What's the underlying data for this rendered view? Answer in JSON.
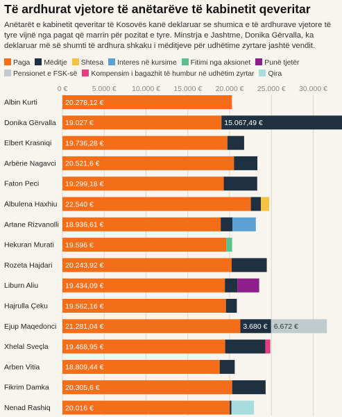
{
  "chart_data": {
    "type": "bar",
    "orientation": "horizontal",
    "stacked": true,
    "title": "Të ardhurat vjetore të anëtarëve të kabinetit qeveritar",
    "subtitle": "Anëtarët e kabinetit qeveritar të Kosovës kanë deklaruar se shumica e të ardhurave vjetore të tyre vijnë nga pagat që marrin për pozitat e tyre. Minstrja e Jashtme, Donika Gërvalla, ka deklaruar më së shumti të ardhura shkaku i mëditjeve për udhëtime zyrtare jashtë vendit.",
    "xlim": [
      0,
      34000
    ],
    "x_ticks": [
      0,
      5000,
      10000,
      15000,
      20000,
      25000,
      30000
    ],
    "x_tick_labels": [
      "0 €",
      "5.000 €",
      "10.000 €",
      "15.000 €",
      "20.000 €",
      "25.000 €",
      "30.000 €"
    ],
    "grid": true,
    "legend_position": "top",
    "categories": [
      "Albin Kurti",
      "Donika Gërvalla",
      "Elbert Krasniqi",
      "Arbërie Nagavci",
      "Faton Peci",
      "Albulena Haxhiu",
      "Artane Rizvanolli",
      "Hekuran Murati",
      "Rozeta Hajdari",
      "Liburn Aliu",
      "Hajrulla Çeku",
      "Ejup Maqedonci",
      "Xhelal Sveçla",
      "Arben Vitia",
      "Fikrim Damka",
      "Nenad Rashiq"
    ],
    "series": [
      {
        "name": "Paga",
        "color": "#f46d19",
        "values": [
          20278.12,
          19027,
          19736.28,
          20521.6,
          19299.18,
          22540,
          18936.61,
          19596,
          20243.92,
          19434.09,
          19562.16,
          21281.04,
          19468.95,
          18809.44,
          20305.6,
          20016
        ]
      },
      {
        "name": "Mëditje",
        "color": "#1f3040",
        "values": [
          0,
          15067.49,
          2000,
          2800,
          4000,
          1200,
          1400,
          0,
          4200,
          1500,
          1300,
          3680,
          4800,
          1800,
          4000,
          200
        ]
      },
      {
        "name": "Shtesa",
        "color": "#f6c243",
        "values": [
          0,
          0,
          0,
          0,
          0,
          1000,
          0,
          0,
          0,
          0,
          0,
          0,
          0,
          0,
          0,
          0
        ]
      },
      {
        "name": "Interes në kursime",
        "color": "#5aa2d6",
        "values": [
          0,
          0,
          0,
          0,
          0,
          0,
          2800,
          0,
          0,
          0,
          0,
          0,
          0,
          0,
          0,
          0
        ]
      },
      {
        "name": "Fitimi nga aksionet",
        "color": "#5ac18e",
        "values": [
          0,
          0,
          0,
          0,
          0,
          0,
          0,
          700,
          0,
          0,
          0,
          0,
          0,
          0,
          0,
          0
        ]
      },
      {
        "name": "Punë tjetër",
        "color": "#8c1f8c",
        "values": [
          0,
          0,
          0,
          0,
          0,
          0,
          0,
          0,
          0,
          2600,
          0,
          0,
          0,
          0,
          0,
          0
        ]
      },
      {
        "name": "Pensionet e FSK-së",
        "color": "#bfcbcc",
        "values": [
          0,
          0,
          0,
          0,
          0,
          0,
          0,
          0,
          0,
          0,
          0,
          6672,
          0,
          0,
          0,
          0
        ]
      },
      {
        "name": "Kompensim i bagazhit të humbur në udhëtim zyrtar",
        "color": "#e43d80",
        "values": [
          0,
          0,
          0,
          0,
          0,
          0,
          0,
          0,
          0,
          0,
          0,
          0,
          600,
          0,
          0,
          0
        ]
      },
      {
        "name": "Qira",
        "color": "#a8dde0",
        "values": [
          0,
          0,
          0,
          0,
          0,
          0,
          0,
          0,
          0,
          0,
          0,
          0,
          0,
          0,
          0,
          2700
        ]
      }
    ],
    "data_labels": [
      {
        "row": 0,
        "series": 0,
        "text": "20.278,12 €"
      },
      {
        "row": 1,
        "series": 0,
        "text": "19.027 €"
      },
      {
        "row": 1,
        "series": 1,
        "text": "15.067,49 €"
      },
      {
        "row": 2,
        "series": 0,
        "text": "19.736,28 €"
      },
      {
        "row": 3,
        "series": 0,
        "text": "20.521,6 €"
      },
      {
        "row": 4,
        "series": 0,
        "text": "19.299,18 €"
      },
      {
        "row": 5,
        "series": 0,
        "text": "22.540 €"
      },
      {
        "row": 6,
        "series": 0,
        "text": "18.936,61 €"
      },
      {
        "row": 7,
        "series": 0,
        "text": "19.596 €"
      },
      {
        "row": 8,
        "series": 0,
        "text": "20.243,92 €"
      },
      {
        "row": 9,
        "series": 0,
        "text": "19.434,09 €"
      },
      {
        "row": 10,
        "series": 0,
        "text": "19.562,16 €"
      },
      {
        "row": 11,
        "series": 0,
        "text": "21.281,04 €"
      },
      {
        "row": 11,
        "series": 1,
        "text": "3.680 €"
      },
      {
        "row": 11,
        "series": 6,
        "text": "6.672 €"
      },
      {
        "row": 12,
        "series": 0,
        "text": "19.468,95 €"
      },
      {
        "row": 13,
        "series": 0,
        "text": "18.809,44 €"
      },
      {
        "row": 14,
        "series": 0,
        "text": "20.305,6 €"
      },
      {
        "row": 15,
        "series": 0,
        "text": "20.016 €"
      }
    ]
  }
}
